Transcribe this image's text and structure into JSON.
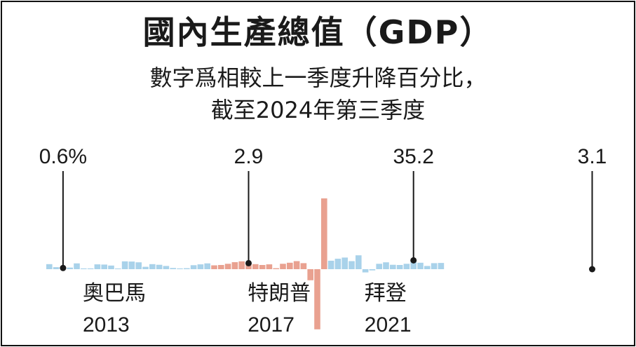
{
  "chart_data": {
    "type": "bar",
    "title": "國內生產總值（GDP）",
    "subtitle_line1": "數字爲相較上一季度升降百分比，",
    "subtitle_line2": "截至2024年第三季度",
    "annotations": [
      {
        "label": "0.6%",
        "index": 2
      },
      {
        "label": "2.9",
        "index": 29
      },
      {
        "label": "35.2",
        "index": 53
      },
      {
        "label": "3.1",
        "index": 79
      }
    ],
    "presidents": [
      {
        "name": "奧巴馬",
        "year": "2013"
      },
      {
        "name": "特朗普",
        "year": "2017"
      },
      {
        "name": "拜登",
        "year": "2021"
      }
    ],
    "colors": {
      "obama": "#a9d2ea",
      "trump": "#e9a190",
      "biden": "#a9d2ea",
      "text": "#1a1a1a"
    },
    "ylim": [
      -35,
      35.2
    ],
    "series": [
      {
        "party": "obama",
        "values": [
          2.5,
          1.0,
          0.6,
          0.8,
          2.9,
          0.4,
          0.4,
          2.4,
          2.3,
          1.8,
          0.3,
          3.9,
          3.8,
          3.4,
          1.2,
          2.5,
          2.2,
          1.6,
          0.6,
          0.4,
          0.5,
          2.0,
          2.4,
          2.9
        ]
      },
      {
        "party": "trump",
        "values": [
          1.9,
          2.1,
          2.7,
          3.5,
          3.9,
          3.0,
          2.5,
          2.1,
          2.4,
          0.5,
          2.7,
          3.2,
          4.0,
          3.0,
          -5.5,
          -29.9,
          35.2
        ]
      },
      {
        "party": "biden",
        "values": [
          4.2,
          5.2,
          5.8,
          4.0,
          6.9,
          -1.6,
          -0.6,
          2.7,
          3.4,
          2.2,
          2.1,
          2.7,
          4.4,
          3.2,
          1.6,
          3.0,
          3.1
        ]
      }
    ]
  }
}
